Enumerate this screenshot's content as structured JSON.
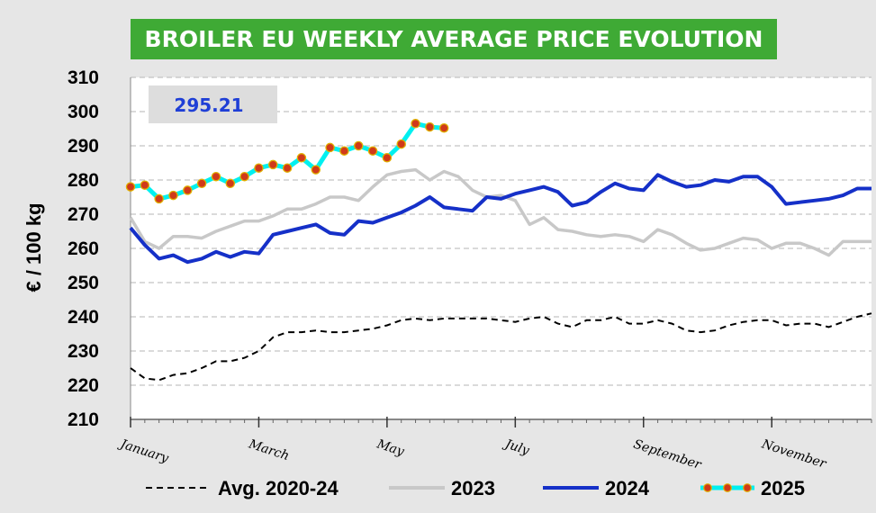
{
  "chart_data": {
    "type": "line",
    "title": "BROILER EU WEEKLY AVERAGE PRICE EVOLUTION",
    "ylabel": "€ / 100 kg",
    "xlabel": "",
    "ylim": [
      210,
      310
    ],
    "yticks": [
      210,
      220,
      230,
      240,
      250,
      260,
      270,
      280,
      290,
      300,
      310
    ],
    "xlim": [
      1,
      53
    ],
    "xticks": [
      {
        "label": "January",
        "week": 1
      },
      {
        "label": "March",
        "week": 10
      },
      {
        "label": "May",
        "week": 19
      },
      {
        "label": "July",
        "week": 28
      },
      {
        "label": "September",
        "week": 37
      },
      {
        "label": "November",
        "week": 46
      }
    ],
    "grid": true,
    "callout": "295.21",
    "legend_position": "bottom",
    "colors": {
      "title_bg": "#3faa35",
      "avg": "#000000",
      "y2023": "#c8c8c8",
      "y2024": "#1530c8",
      "y2025_line": "#00f0f0",
      "y2025_marker": "#d03a1a",
      "y2025_marker_edge": "#e0b000"
    },
    "series": [
      {
        "name": "Avg. 2020-24",
        "style": "dashed",
        "x": [
          1,
          2,
          3,
          4,
          5,
          6,
          7,
          8,
          9,
          10,
          11,
          12,
          13,
          14,
          15,
          16,
          17,
          18,
          19,
          20,
          21,
          22,
          23,
          24,
          25,
          26,
          27,
          28,
          29,
          30,
          31,
          32,
          33,
          34,
          35,
          36,
          37,
          38,
          39,
          40,
          41,
          42,
          43,
          44,
          45,
          46,
          47,
          48,
          49,
          50,
          51,
          52,
          53
        ],
        "values": [
          225,
          222,
          221.5,
          223,
          223.5,
          225,
          227,
          227,
          228,
          230,
          234,
          235.5,
          235.5,
          236,
          235.5,
          235.5,
          236,
          236.5,
          237.5,
          239,
          239.5,
          239,
          239.5,
          239.5,
          239.5,
          239.5,
          239,
          238.5,
          239.5,
          240,
          238,
          237,
          239,
          239,
          240,
          238,
          238,
          239,
          238,
          236,
          235.5,
          236,
          237.5,
          238.5,
          239,
          239,
          237.5,
          238,
          238,
          237,
          238.5,
          240,
          241
        ]
      },
      {
        "name": "2023",
        "style": "solid",
        "x": [
          1,
          2,
          3,
          4,
          5,
          6,
          7,
          8,
          9,
          10,
          11,
          12,
          13,
          14,
          15,
          16,
          17,
          18,
          19,
          20,
          21,
          22,
          23,
          24,
          25,
          26,
          27,
          28,
          29,
          30,
          31,
          32,
          33,
          34,
          35,
          36,
          37,
          38,
          39,
          40,
          41,
          42,
          43,
          44,
          45,
          46,
          47,
          48,
          49,
          50,
          51,
          52,
          53
        ],
        "values": [
          269,
          262,
          260,
          263.5,
          263.5,
          263,
          265,
          266.5,
          268,
          268,
          269.5,
          271.5,
          271.5,
          273,
          275,
          275,
          274,
          278,
          281.5,
          282.5,
          283,
          280,
          282.5,
          281,
          277,
          275,
          275.5,
          274,
          267,
          269,
          265.5,
          265,
          264,
          263.5,
          264,
          263.5,
          262,
          265.5,
          264,
          261.5,
          259.5,
          260,
          261.5,
          263,
          262.5,
          260,
          261.5,
          261.5,
          260,
          258,
          262,
          262,
          262
        ]
      },
      {
        "name": "2024",
        "style": "solid",
        "x": [
          1,
          2,
          3,
          4,
          5,
          6,
          7,
          8,
          9,
          10,
          11,
          12,
          13,
          14,
          15,
          16,
          17,
          18,
          19,
          20,
          21,
          22,
          23,
          24,
          25,
          26,
          27,
          28,
          29,
          30,
          31,
          32,
          33,
          34,
          35,
          36,
          37,
          38,
          39,
          40,
          41,
          42,
          43,
          44,
          45,
          46,
          47,
          48,
          49,
          50,
          51,
          52,
          53
        ],
        "values": [
          266,
          261,
          257,
          258,
          256,
          257,
          259,
          257.5,
          259,
          258.5,
          264,
          265,
          266,
          267,
          264.5,
          264,
          268,
          267.5,
          269,
          270.5,
          272.5,
          275,
          272,
          271.5,
          271,
          275,
          274.5,
          276,
          277,
          278,
          276.5,
          272.5,
          273.5,
          276.5,
          279,
          277.5,
          277,
          281.5,
          279.5,
          278,
          278.5,
          280,
          279.5,
          281,
          281,
          278,
          273,
          273.5,
          274,
          274.5,
          275.5,
          277.5,
          277.5
        ]
      },
      {
        "name": "2025",
        "style": "marker",
        "x": [
          1,
          2,
          3,
          4,
          5,
          6,
          7,
          8,
          9,
          10,
          11,
          12,
          13,
          14,
          15,
          16,
          17,
          18,
          19,
          20,
          21,
          22,
          23
        ],
        "values": [
          278,
          278.5,
          274.5,
          275.5,
          277,
          279,
          281,
          279,
          281,
          283.5,
          284.5,
          283.5,
          286.5,
          283,
          289.5,
          288.5,
          290,
          288.5,
          286.5,
          290.5,
          296.5,
          295.5,
          295.2
        ]
      }
    ]
  }
}
